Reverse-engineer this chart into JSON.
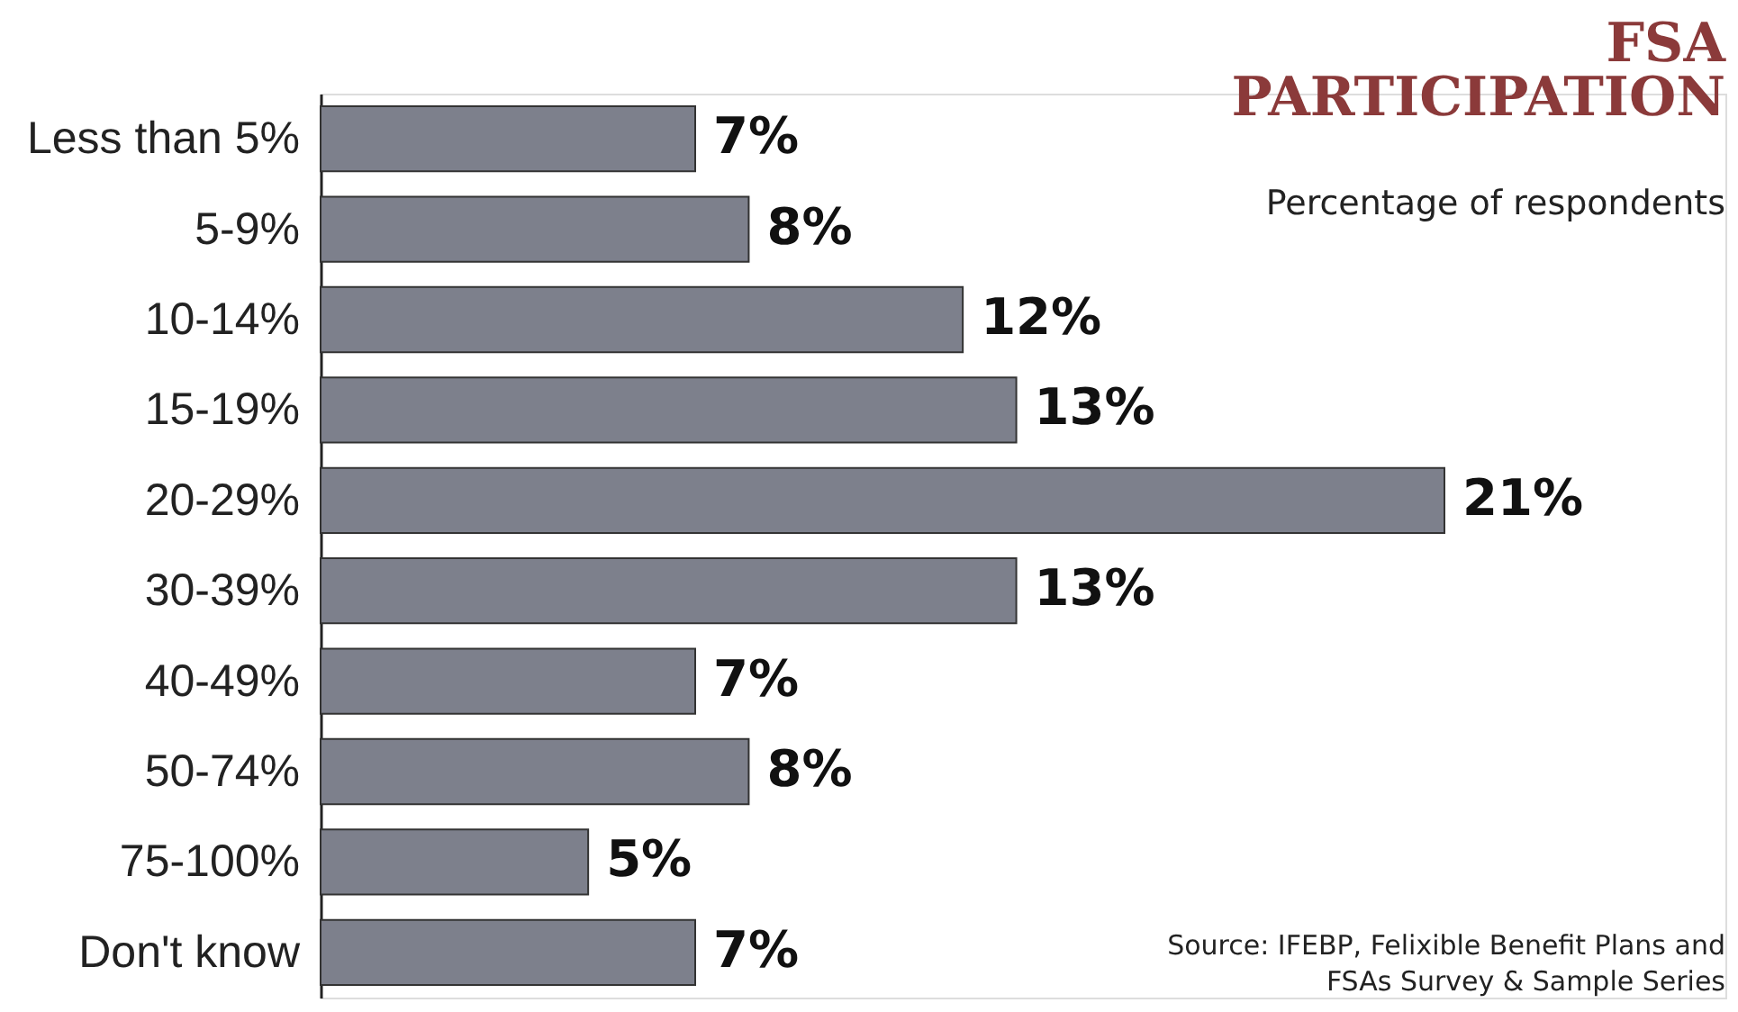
{
  "chart_data": {
    "type": "bar",
    "orientation": "horizontal",
    "title": "FSA PARTICIPATION",
    "subtitle": "Percentage of respondents",
    "categories": [
      "Less than 5%",
      "5-9%",
      "10-14%",
      "15-19%",
      "20-29%",
      "30-39%",
      "40-49%",
      "50-74%",
      "75-100%",
      "Don't know"
    ],
    "values": [
      7,
      8,
      12,
      13,
      21,
      13,
      7,
      8,
      5,
      7
    ],
    "value_labels": [
      "7%",
      "8%",
      "12%",
      "13%",
      "21%",
      "13%",
      "7%",
      "8%",
      "5%",
      "7%"
    ],
    "color": "#7d808c",
    "tick_labels": "y",
    "grid": false,
    "annotations": [
      "Source: IFEBP, Felixible Benefit Plans and FSAs Survey & Sample Series"
    ]
  }
}
